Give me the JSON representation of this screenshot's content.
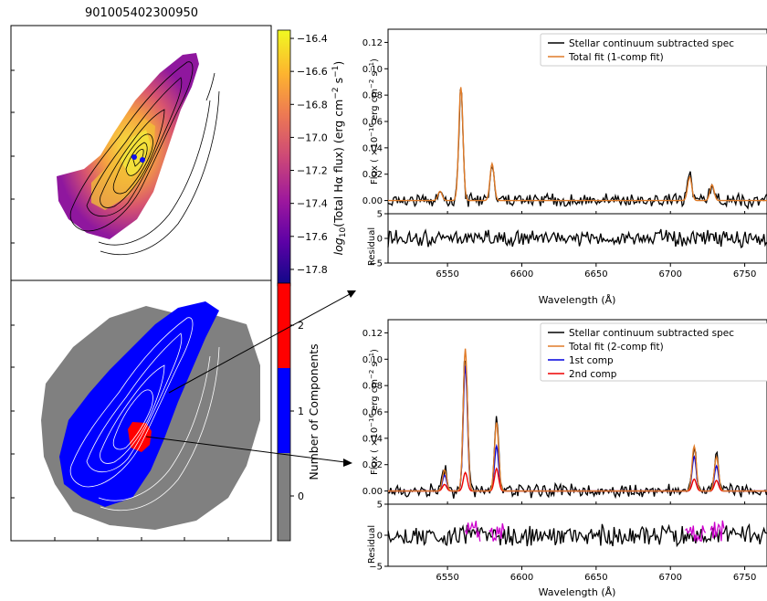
{
  "figure": {
    "title": "901005402300950"
  },
  "colormap": {
    "label_prefix": "log",
    "label_sub": "10",
    "label_rest": "(Total Hα flux) (erg cm",
    "label_exp1": "−2",
    "label_s": " s",
    "label_exp2": "−1",
    "label_close": ")",
    "ticks": [
      "−16.4",
      "−16.6",
      "−16.8",
      "−17.0",
      "−17.2",
      "−17.4",
      "−17.6",
      "−17.8"
    ],
    "tick_values": [
      -16.4,
      -16.6,
      -16.8,
      -17.0,
      -17.2,
      -17.4,
      -17.6,
      -17.8
    ],
    "range": [
      -17.9,
      -16.35
    ],
    "colors": [
      "#0d0887",
      "#5c01a6",
      "#9c179e",
      "#cc4778",
      "#ed7953",
      "#fdb42f",
      "#f0f921"
    ]
  },
  "components_bar": {
    "label": "Number of Components",
    "ticks": [
      "2",
      "1",
      "0"
    ],
    "colors": {
      "zero": "#808080",
      "one": "#0000ff",
      "two": "#ff0000"
    }
  },
  "spectrum_1comp": {
    "ylabel_pre": "Flux ( ×10",
    "ylabel_exp": "−16",
    "ylabel_post": " erg cm",
    "ylabel_exp2": "−2",
    "ylabel_s": " s",
    "ylabel_exp3": "−1",
    "ylabel_close": ")",
    "yticks": [
      "0.12",
      "0.10",
      "0.08",
      "0.06",
      "0.04",
      "0.02",
      "0.00"
    ],
    "legend": [
      "Stellar continuum subtracted spec",
      "Total fit (1-comp fit)"
    ],
    "resid_label": "Residual",
    "resid_ticks": [
      "5",
      "0",
      "−5"
    ],
    "xticks": [
      "6550",
      "6600",
      "6650",
      "6700",
      "6750"
    ],
    "xlabel": "Wavelength (Å)"
  },
  "spectrum_2comp": {
    "yticks": [
      "0.12",
      "0.10",
      "0.08",
      "0.06",
      "0.04",
      "0.02",
      "0.00"
    ],
    "legend": [
      "Stellar continuum subtracted spec",
      "Total fit (2-comp fit)",
      "1st comp",
      "2nd comp"
    ],
    "resid_label": "Residual",
    "resid_ticks": [
      "5",
      "0",
      "−5"
    ],
    "xticks": [
      "6550",
      "6600",
      "6650",
      "6700",
      "6750"
    ],
    "xlabel": "Wavelength (Å)"
  },
  "chart_data": [
    {
      "type": "heatmap",
      "title": "901005402300950",
      "colorbar_label": "log10(Total Hα flux) (erg cm−2 s−1)",
      "colorbar_range": [
        -17.85,
        -16.35
      ],
      "colorbar_ticks": [
        -16.4,
        -16.6,
        -16.8,
        -17.0,
        -17.2,
        -17.4,
        -17.6,
        -17.8
      ]
    },
    {
      "type": "heatmap",
      "colorbar_label": "Number of Components",
      "colorbar_ticks": [
        0,
        1,
        2
      ],
      "categories": [
        "0",
        "1",
        "2"
      ]
    },
    {
      "type": "line",
      "xlabel": "Wavelength (Å)",
      "ylabel": "Flux ( ×10−16 erg cm−2 s−1)",
      "xlim": [
        6510,
        6765
      ],
      "ylim": [
        -0.01,
        0.13
      ],
      "x_ticks": [
        6550,
        6600,
        6650,
        6700,
        6750
      ],
      "y_ticks": [
        0.0,
        0.02,
        0.04,
        0.06,
        0.08,
        0.1,
        0.12
      ],
      "series": [
        {
          "name": "Stellar continuum subtracted spec",
          "color": "#000000"
        },
        {
          "name": "Total fit (1-comp fit)",
          "color": "#e07b28",
          "lines": [
            {
              "center": 6545,
              "peak": 0.007
            },
            {
              "center": 6559,
              "peak": 0.086
            },
            {
              "center": 6580,
              "peak": 0.028
            },
            {
              "center": 6713,
              "peak": 0.018
            },
            {
              "center": 6728,
              "peak": 0.012
            }
          ]
        }
      ],
      "residual": {
        "ylabel": "Residual",
        "ylim": [
          -5,
          5
        ],
        "y_ticks": [
          -5,
          0,
          5
        ]
      }
    },
    {
      "type": "line",
      "xlabel": "Wavelength (Å)",
      "ylabel": "Flux ( ×10−16 erg cm−2 s−1)",
      "xlim": [
        6510,
        6765
      ],
      "ylim": [
        -0.01,
        0.13
      ],
      "x_ticks": [
        6550,
        6600,
        6650,
        6700,
        6750
      ],
      "y_ticks": [
        0.0,
        0.02,
        0.04,
        0.06,
        0.08,
        0.1,
        0.12
      ],
      "series": [
        {
          "name": "Stellar continuum subtracted spec",
          "color": "#000000"
        },
        {
          "name": "Total fit (2-comp fit)",
          "color": "#e07b28",
          "lines": [
            {
              "center": 6548,
              "peak": 0.016
            },
            {
              "center": 6562,
              "peak": 0.108
            },
            {
              "center": 6583,
              "peak": 0.052
            },
            {
              "center": 6716,
              "peak": 0.034
            },
            {
              "center": 6731,
              "peak": 0.026
            }
          ]
        },
        {
          "name": "1st comp",
          "color": "#0000dd",
          "lines": [
            {
              "center": 6548,
              "peak": 0.012
            },
            {
              "center": 6562,
              "peak": 0.095
            },
            {
              "center": 6583,
              "peak": 0.034
            },
            {
              "center": 6716,
              "peak": 0.026
            },
            {
              "center": 6731,
              "peak": 0.019
            }
          ]
        },
        {
          "name": "2nd comp",
          "color": "#ee0000",
          "lines": [
            {
              "center": 6548,
              "peak": 0.005
            },
            {
              "center": 6562,
              "peak": 0.014
            },
            {
              "center": 6583,
              "peak": 0.017
            },
            {
              "center": 6716,
              "peak": 0.009
            },
            {
              "center": 6731,
              "peak": 0.008
            }
          ]
        }
      ],
      "residual": {
        "ylabel": "Residual",
        "ylim": [
          -5,
          5
        ],
        "y_ticks": [
          -5,
          0,
          5
        ]
      }
    }
  ]
}
